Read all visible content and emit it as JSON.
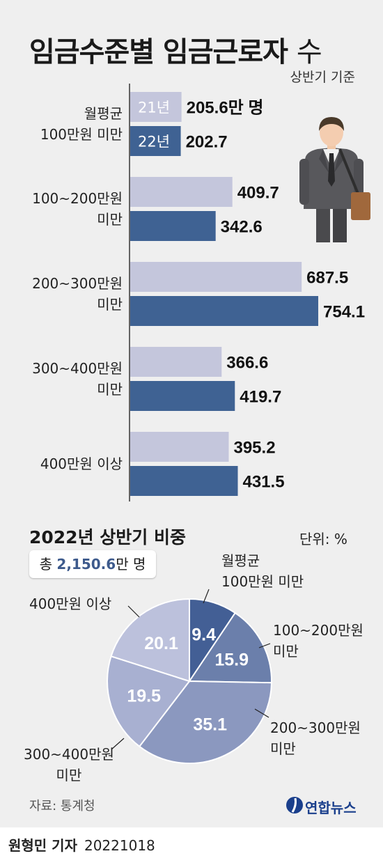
{
  "title": {
    "main": "임금수준별 임금근로자",
    "suffix": "수"
  },
  "basis": "상반기 기준",
  "colors": {
    "bar_2021": "#c4c6dc",
    "bar_2022": "#3f6293",
    "background": "#efefef"
  },
  "chart_data": [
    {
      "type": "bar",
      "orientation": "horizontal",
      "categories": [
        [
          "월평균",
          "100만원 미만"
        ],
        [
          "100~200만원",
          "미만"
        ],
        [
          "200~300만원",
          "미만"
        ],
        [
          "300~400만원",
          "미만"
        ],
        [
          "400만원 이상"
        ]
      ],
      "series": [
        {
          "name": "21년",
          "values": [
            205.6,
            409.7,
            687.5,
            366.6,
            395.2
          ]
        },
        {
          "name": "22년",
          "values": [
            202.7,
            342.6,
            754.1,
            419.7,
            431.5
          ]
        }
      ],
      "value_labels": [
        [
          "205.6만 명",
          "409.7",
          "687.5",
          "366.6",
          "395.2"
        ],
        [
          "202.7",
          "342.6",
          "754.1",
          "419.7",
          "431.5"
        ]
      ]
    },
    {
      "type": "pie",
      "title": "2022년 상반기 비중",
      "unit": "단위: %",
      "total_prefix": "총",
      "total_value": "2,150.6",
      "total_suffix": "만 명",
      "slices": [
        {
          "label": [
            "월평균",
            "100만원 미만"
          ],
          "value": 9.4,
          "color": "#435f95"
        },
        {
          "label": [
            "100~200만원",
            "미만"
          ],
          "value": 15.9,
          "color": "#6b7fab"
        },
        {
          "label": [
            "200~300만원",
            "미만"
          ],
          "value": 35.1,
          "color": "#8b98bf"
        },
        {
          "label": [
            "300~400만원",
            "미만"
          ],
          "value": 19.5,
          "color": "#a8b0d1"
        },
        {
          "label": [
            "400만원 이상"
          ],
          "value": 20.1,
          "color": "#bcc1dc"
        }
      ]
    }
  ],
  "footer": {
    "source": "자료: 통계청",
    "logo_text": "연합뉴스",
    "reporter": "원형민 기자",
    "date": "20221018"
  }
}
